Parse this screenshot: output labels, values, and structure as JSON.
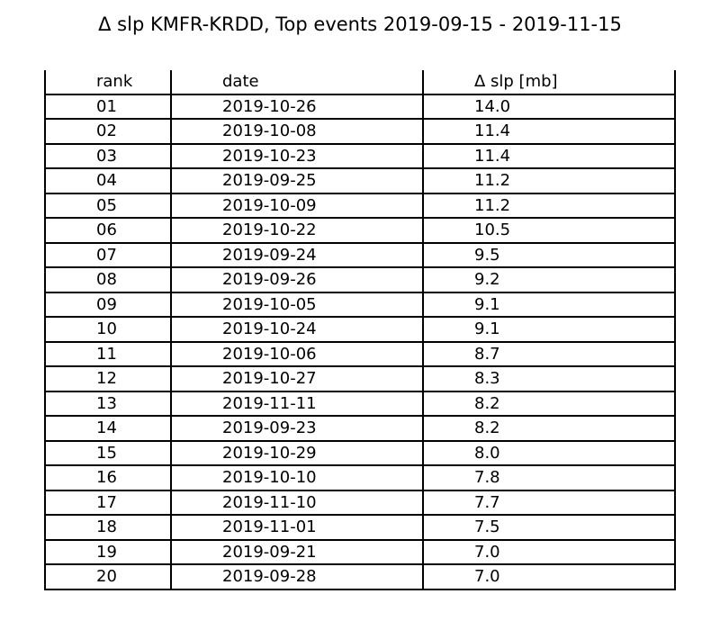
{
  "chart_data": {
    "type": "table",
    "title": "Δ slp KMFR-KRDD, Top events 2019-09-15 - 2019-11-15",
    "columns": [
      "rank",
      "date",
      "Δ slp [mb]"
    ],
    "rows": [
      [
        "01",
        "2019-10-26",
        "14.0"
      ],
      [
        "02",
        "2019-10-08",
        "11.4"
      ],
      [
        "03",
        "2019-10-23",
        "11.4"
      ],
      [
        "04",
        "2019-09-25",
        "11.2"
      ],
      [
        "05",
        "2019-10-09",
        "11.2"
      ],
      [
        "06",
        "2019-10-22",
        "10.5"
      ],
      [
        "07",
        "2019-09-24",
        "9.5"
      ],
      [
        "08",
        "2019-09-26",
        "9.2"
      ],
      [
        "09",
        "2019-10-05",
        "9.1"
      ],
      [
        "10",
        "2019-10-24",
        "9.1"
      ],
      [
        "11",
        "2019-10-06",
        "8.7"
      ],
      [
        "12",
        "2019-10-27",
        "8.3"
      ],
      [
        "13",
        "2019-11-11",
        "8.2"
      ],
      [
        "14",
        "2019-09-23",
        "8.2"
      ],
      [
        "15",
        "2019-10-29",
        "8.0"
      ],
      [
        "16",
        "2019-10-10",
        "7.8"
      ],
      [
        "17",
        "2019-11-10",
        "7.7"
      ],
      [
        "18",
        "2019-11-01",
        "7.5"
      ],
      [
        "19",
        "2019-09-21",
        "7.0"
      ],
      [
        "20",
        "2019-09-28",
        "7.0"
      ]
    ]
  }
}
